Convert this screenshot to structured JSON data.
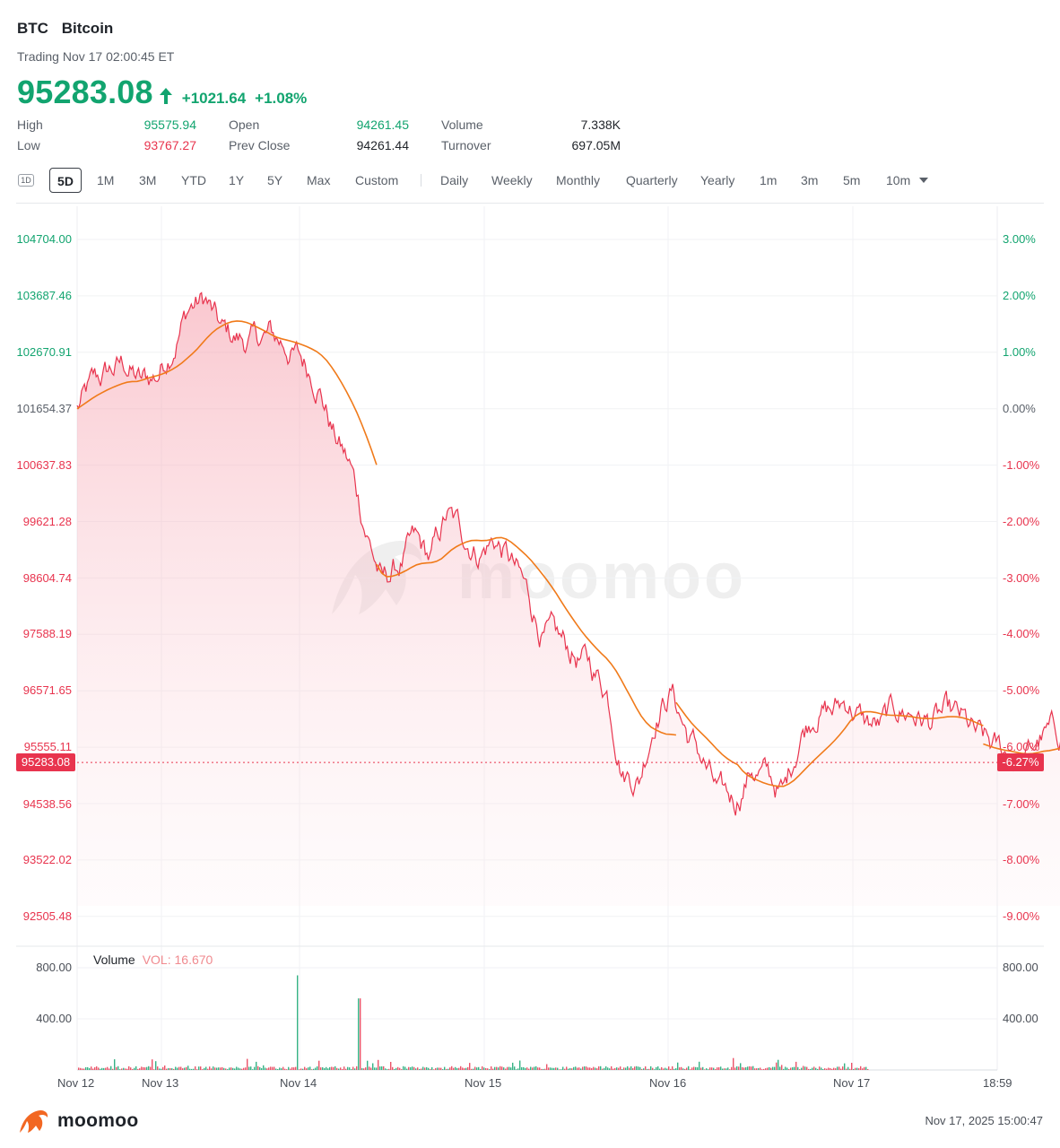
{
  "header": {
    "symbol": "BTC",
    "name": "Bitcoin",
    "status": "Trading Nov 17 02:00:45 ET",
    "price": "95283.08",
    "change": "+1021.64",
    "change_pct": "+1.08%",
    "up_color": "#12a46f",
    "down_color": "#e8344e"
  },
  "stats": {
    "high_label": "High",
    "high": "95575.94",
    "low_label": "Low",
    "low": "93767.27",
    "open_label": "Open",
    "open": "94261.45",
    "prev_close_label": "Prev Close",
    "prev_close": "94261.44",
    "volume_label": "Volume",
    "volume": "7.338K",
    "turnover_label": "Turnover",
    "turnover": "697.05M"
  },
  "tabs": {
    "icon_1d": "1D",
    "range": [
      "5D",
      "1M",
      "3M",
      "YTD",
      "1Y",
      "5Y",
      "Max",
      "Custom"
    ],
    "active": "5D",
    "interval": [
      "Daily",
      "Weekly",
      "Monthly",
      "Quarterly",
      "Yearly",
      "1m",
      "3m",
      "5m",
      "10m"
    ],
    "dropdown_icon": "caret-down-icon"
  },
  "chart": {
    "price_axis": [
      "104704.00",
      "103687.46",
      "102670.91",
      "101654.37",
      "100637.83",
      "99621.28",
      "98604.74",
      "97588.19",
      "96571.65",
      "95555.11",
      "94538.56",
      "93522.02",
      "92505.48"
    ],
    "pct_axis": [
      "3.00%",
      "2.00%",
      "1.00%",
      "0.00%",
      "-1.00%",
      "-2.00%",
      "-3.00%",
      "-4.00%",
      "-5.00%",
      "-6.00%",
      "-7.00%",
      "-8.00%",
      "-9.00%"
    ],
    "current_price_tag": "95283.08",
    "current_pct_tag": "-6.27%",
    "x_labels": [
      "Nov 12",
      "Nov 13",
      "Nov 14",
      "Nov 15",
      "Nov 16",
      "Nov 17",
      "18:59"
    ],
    "watermark": "moomoo",
    "line_color": "#e8344e",
    "ma_color": "#f07a1a"
  },
  "volume": {
    "title": "Volume",
    "vol_label": "VOL: 16.670",
    "axis_left": [
      "800.00",
      "400.00"
    ],
    "axis_right": [
      "800.00",
      "400.00"
    ]
  },
  "footer": {
    "brand": "moomoo",
    "timestamp": "Nov 17, 2025 15:00:47"
  },
  "chart_data": {
    "type": "line",
    "title": "",
    "xlabel": "",
    "ylabel": "",
    "x": [
      "Nov 12 00:00",
      "Nov 12 06:00",
      "Nov 12 12:00",
      "Nov 12 18:00",
      "Nov 13 00:00",
      "Nov 13 06:00",
      "Nov 13 12:00",
      "Nov 13 18:00",
      "Nov 14 00:00",
      "Nov 14 06:00",
      "Nov 14 12:00",
      "Nov 14 18:00",
      "Nov 15 00:00",
      "Nov 15 06:00",
      "Nov 15 12:00",
      "Nov 15 18:00",
      "Nov 16 00:00",
      "Nov 16 06:00",
      "Nov 16 12:00",
      "Nov 16 18:00",
      "Nov 17 00:00",
      "Nov 17 02:00"
    ],
    "series": [
      {
        "values": [
          101700,
          102200,
          102400,
          103400,
          102900,
          102700,
          102600,
          100200,
          98600,
          99700,
          97300,
          96000,
          95600,
          96300,
          96000,
          96100,
          95800,
          96300,
          96400,
          94400,
          94800,
          95283.08
        ]
      }
    ],
    "ylim": [
      92200,
      105000
    ],
    "y2_label_range": [
      "3.00%",
      "-9.00%"
    ],
    "prev_close": 101654.37,
    "volume_ylim": [
      0,
      900
    ]
  }
}
